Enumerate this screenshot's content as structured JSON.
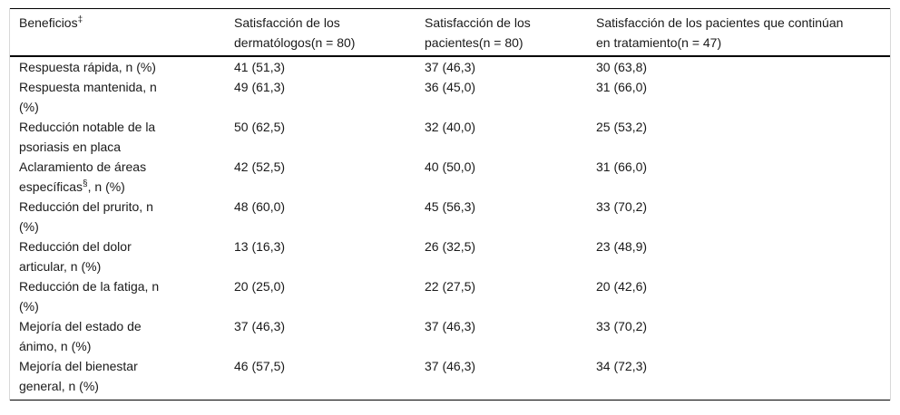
{
  "table": {
    "columns": [
      {
        "label": "Beneficios^{‡}"
      },
      {
        "label": "Satisfacción de los\ndermatólogos(n = 80)"
      },
      {
        "label": "Satisfacción de los\npacientes(n = 80)"
      },
      {
        "label": "Satisfacción de los pacientes que continúan\nen tratamiento(n = 47)"
      }
    ],
    "rows": [
      {
        "label": "Respuesta rápida, n (%)",
        "values": [
          "41 (51,3)",
          "37 (46,3)",
          "30 (63,8)"
        ]
      },
      {
        "label": "Respuesta mantenida, n\n(%)",
        "values": [
          "49 (61,3)",
          "36 (45,0)",
          "31 (66,0)"
        ]
      },
      {
        "label": "Reducción notable de la\npsoriasis en placa",
        "values": [
          "50 (62,5)",
          "32 (40,0)",
          "25 (53,2)"
        ]
      },
      {
        "label": "Aclaramiento de áreas\nespecíficas^{§}, n (%)",
        "values": [
          "42 (52,5)",
          "40 (50,0)",
          "31 (66,0)"
        ]
      },
      {
        "label": "Reducción del prurito, n\n(%)",
        "values": [
          "48 (60,0)",
          "45 (56,3)",
          "33 (70,2)"
        ]
      },
      {
        "label": "Reducción del dolor\narticular, n (%)",
        "values": [
          "13 (16,3)",
          "26 (32,5)",
          "23 (48,9)"
        ]
      },
      {
        "label": "Reducción de la fatiga, n\n(%)",
        "values": [
          "20 (25,0)",
          "22 (27,5)",
          "20 (42,6)"
        ]
      },
      {
        "label": "Mejoría del estado de\nánimo, n (%)",
        "values": [
          "37 (46,3)",
          "37 (46,3)",
          "33 (70,2)"
        ]
      },
      {
        "label": "Mejoría del bienestar\ngeneral, n (%)",
        "values": [
          "46 (57,5)",
          "37 (46,3)",
          "34 (72,3)"
        ]
      }
    ]
  },
  "colors": {
    "text": "#1a1a1a",
    "rule_dark": "#000000",
    "rule_light": "#d9d9d9",
    "background": "#ffffff"
  }
}
